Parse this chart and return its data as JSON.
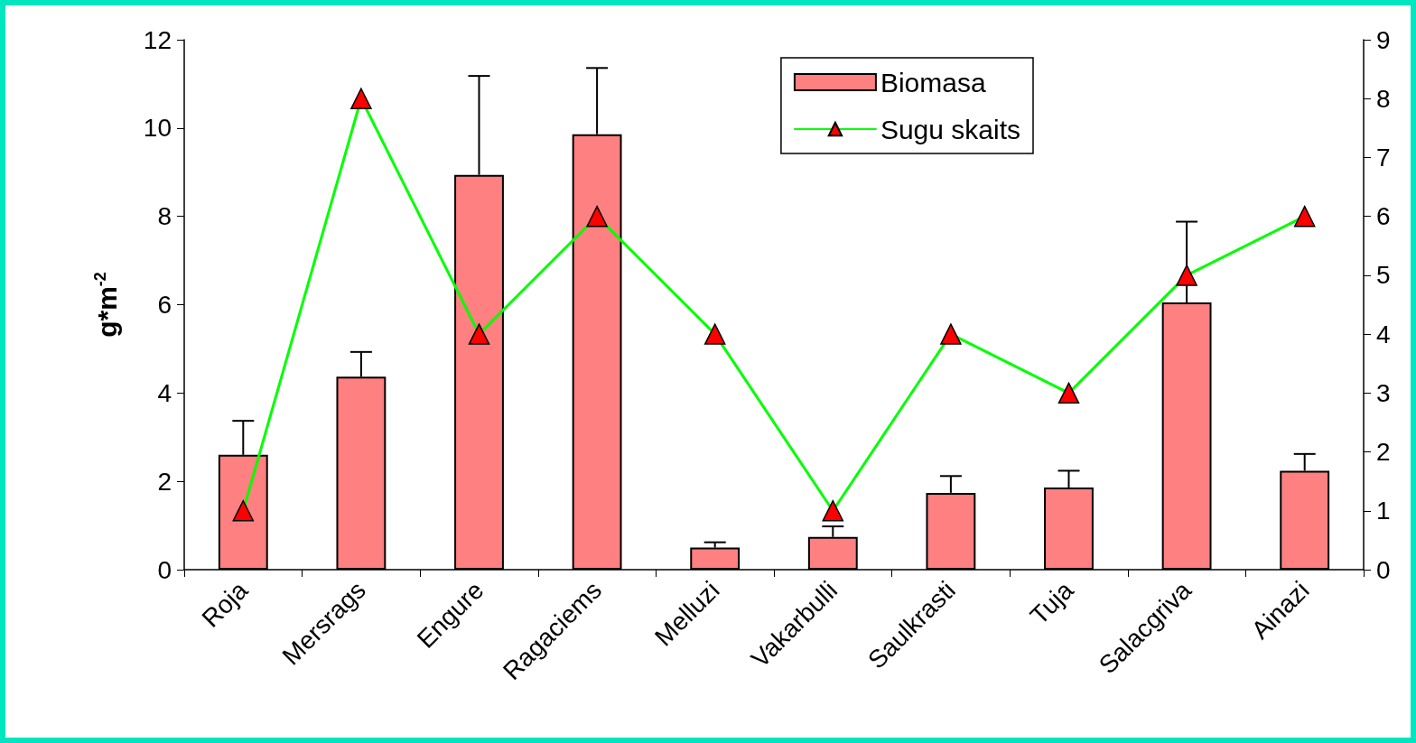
{
  "chart_data": {
    "type": "bar",
    "ylabel": "g*m$^{-2}$",
    "categories": [
      "Roja",
      "Mersrags",
      "Engure",
      "Ragaciems",
      "Melluzi",
      "Vakarbulli",
      "Saulkrasti",
      "Tuja",
      "Salacgriva",
      "Ainazi"
    ],
    "series": [
      {
        "name": "Biomasa",
        "color": "#ff8080",
        "values": [
          2.6,
          4.37,
          8.94,
          9.86,
          0.5,
          0.74,
          1.74,
          1.86,
          6.05,
          2.24
        ],
        "errors": [
          [
            2.6,
            3.37
          ],
          [
            4.37,
            4.93
          ],
          [
            8.94,
            11.18
          ],
          [
            9.86,
            11.36
          ],
          [
            0.5,
            0.62
          ],
          [
            0.74,
            0.98
          ],
          [
            1.74,
            2.12
          ],
          [
            1.86,
            2.24
          ],
          [
            6.05,
            7.88
          ],
          [
            2.24,
            2.62
          ]
        ]
      },
      {
        "name": "Sugu skaits",
        "type": "line",
        "axis": "y2",
        "color": "#00ff00",
        "marker": "triangle",
        "values": [
          1,
          8,
          4,
          6,
          4,
          1,
          4,
          3,
          5,
          6
        ]
      }
    ],
    "ylim": [
      0,
      12
    ],
    "yticks": [
      0,
      2,
      4,
      6,
      8,
      10,
      12
    ],
    "y2lim": [
      0,
      9
    ],
    "y2ticks": [
      0,
      1,
      2,
      3,
      4,
      5,
      6,
      7,
      8,
      9
    ],
    "grid": false,
    "legend": "top right"
  }
}
